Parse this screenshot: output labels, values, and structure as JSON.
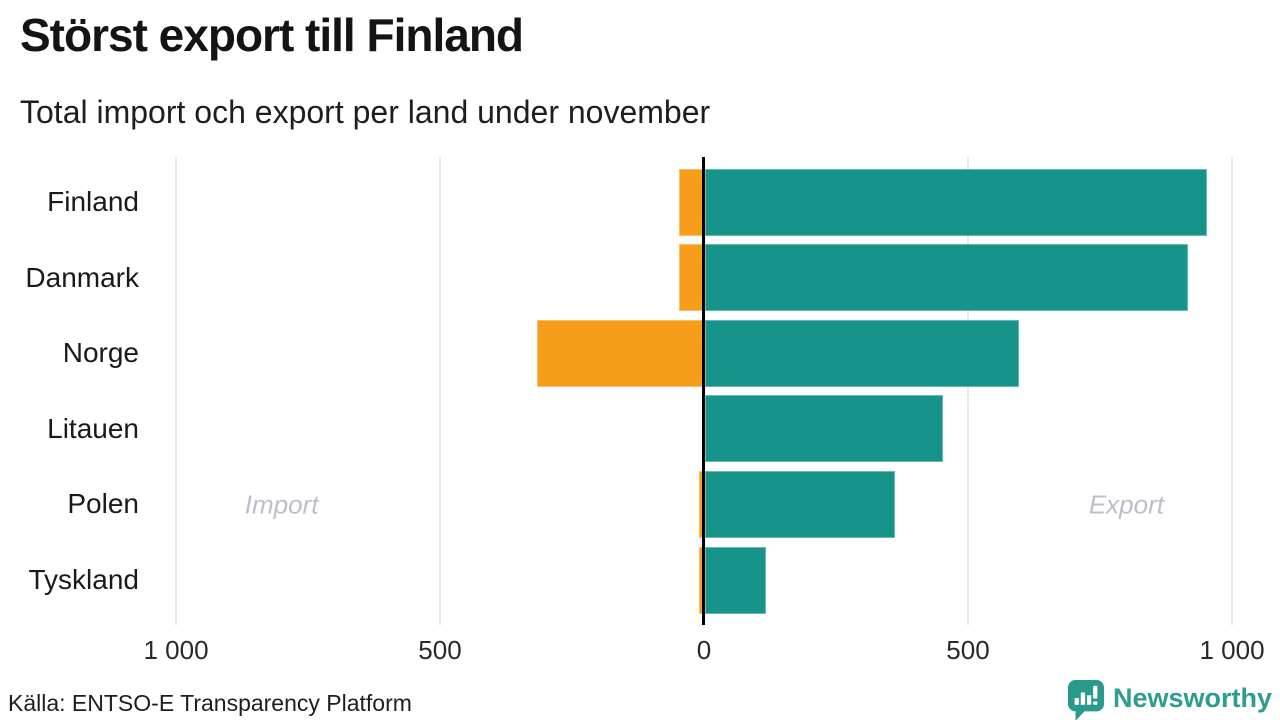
{
  "chart_data": {
    "type": "bar",
    "orientation": "horizontal-diverging",
    "title": "Störst export till Finland",
    "subtitle": "Total import och export per land under november",
    "categories": [
      "Finland",
      "Danmark",
      "Norge",
      "Litauen",
      "Polen",
      "Tyskland"
    ],
    "series": [
      {
        "name": "Import",
        "direction": "left",
        "color": "#f69d1b",
        "values": [
          45,
          45,
          315,
          0,
          8,
          8
        ]
      },
      {
        "name": "Export",
        "direction": "right",
        "color": "#17948a",
        "values": [
          950,
          915,
          595,
          450,
          360,
          115
        ]
      }
    ],
    "xlim": [
      -1000,
      1000
    ],
    "xticks": [
      {
        "value": -1000,
        "label": "1 000"
      },
      {
        "value": -500,
        "label": "500"
      },
      {
        "value": 0,
        "label": "0"
      },
      {
        "value": 500,
        "label": "500"
      },
      {
        "value": 1000,
        "label": "1 000"
      }
    ],
    "grid": "vertical",
    "annotations": [
      {
        "text": "Import",
        "x": -800
      },
      {
        "text": "Export",
        "x": 800
      }
    ],
    "colors": {
      "import": "#f69d1b",
      "export": "#17948a",
      "zero_axis": "#000000",
      "gridline": "#e9e9e9",
      "annotation": "#bdbecd"
    }
  },
  "footer": {
    "source": "Källa: ENTSO-E Transparency Platform",
    "logo_text": "Newsworthy",
    "logo_color": "#2e9c8f"
  }
}
